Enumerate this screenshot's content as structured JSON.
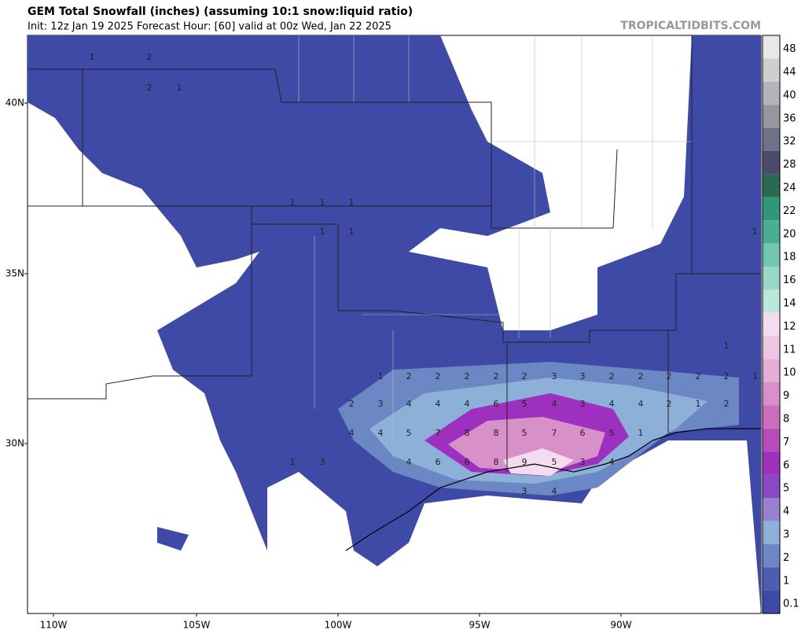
{
  "header": {
    "title": "GEM Total Snowfall (inches) (assuming 10:1 snow:liquid ratio)",
    "subtitle": "Init: 12z Jan 19 2025   Forecast Hour: [60]   valid at 00z Wed, Jan 22 2025",
    "watermark": "TROPICALTIDBITS.COM"
  },
  "map": {
    "lat_labels": [
      "40N",
      "35N",
      "30N"
    ],
    "lon_labels": [
      "110W",
      "105W",
      "100W",
      "95W",
      "90W"
    ],
    "contour_labels": [
      1,
      2,
      2,
      1,
      1,
      1,
      1,
      1,
      1,
      1,
      1,
      1,
      2,
      2,
      2,
      2,
      2,
      3,
      3,
      2,
      2,
      2,
      2,
      2,
      1,
      2,
      3,
      4,
      4,
      4,
      6,
      5,
      4,
      3,
      4,
      4,
      2,
      1,
      2,
      4,
      4,
      5,
      7,
      8,
      8,
      5,
      7,
      6,
      5,
      1,
      1,
      3,
      4,
      6,
      6,
      8,
      9,
      5,
      3,
      4,
      3,
      4
    ]
  },
  "colorbar": {
    "levels": [
      48,
      44,
      40,
      36,
      32,
      28,
      24,
      22,
      20,
      18,
      16,
      14,
      12,
      11,
      10,
      9,
      8,
      7,
      6,
      5,
      4,
      3,
      2,
      1,
      0.1
    ],
    "colors": [
      "#e8e8e8",
      "#cfcfcf",
      "#b4b4bc",
      "#96969f",
      "#707088",
      "#4c4c6a",
      "#2a6a50",
      "#309878",
      "#4aae94",
      "#70c6b0",
      "#98d8c8",
      "#bce8dc",
      "#f3dcee",
      "#ecc6e2",
      "#e4aed6",
      "#d890c8",
      "#cc6cbc",
      "#b84cb8",
      "#9e30c0",
      "#8a48c8",
      "#9a80d0",
      "#8cb0d8",
      "#6c88c4",
      "#4e5cb2",
      "#3f4aa6"
    ]
  }
}
